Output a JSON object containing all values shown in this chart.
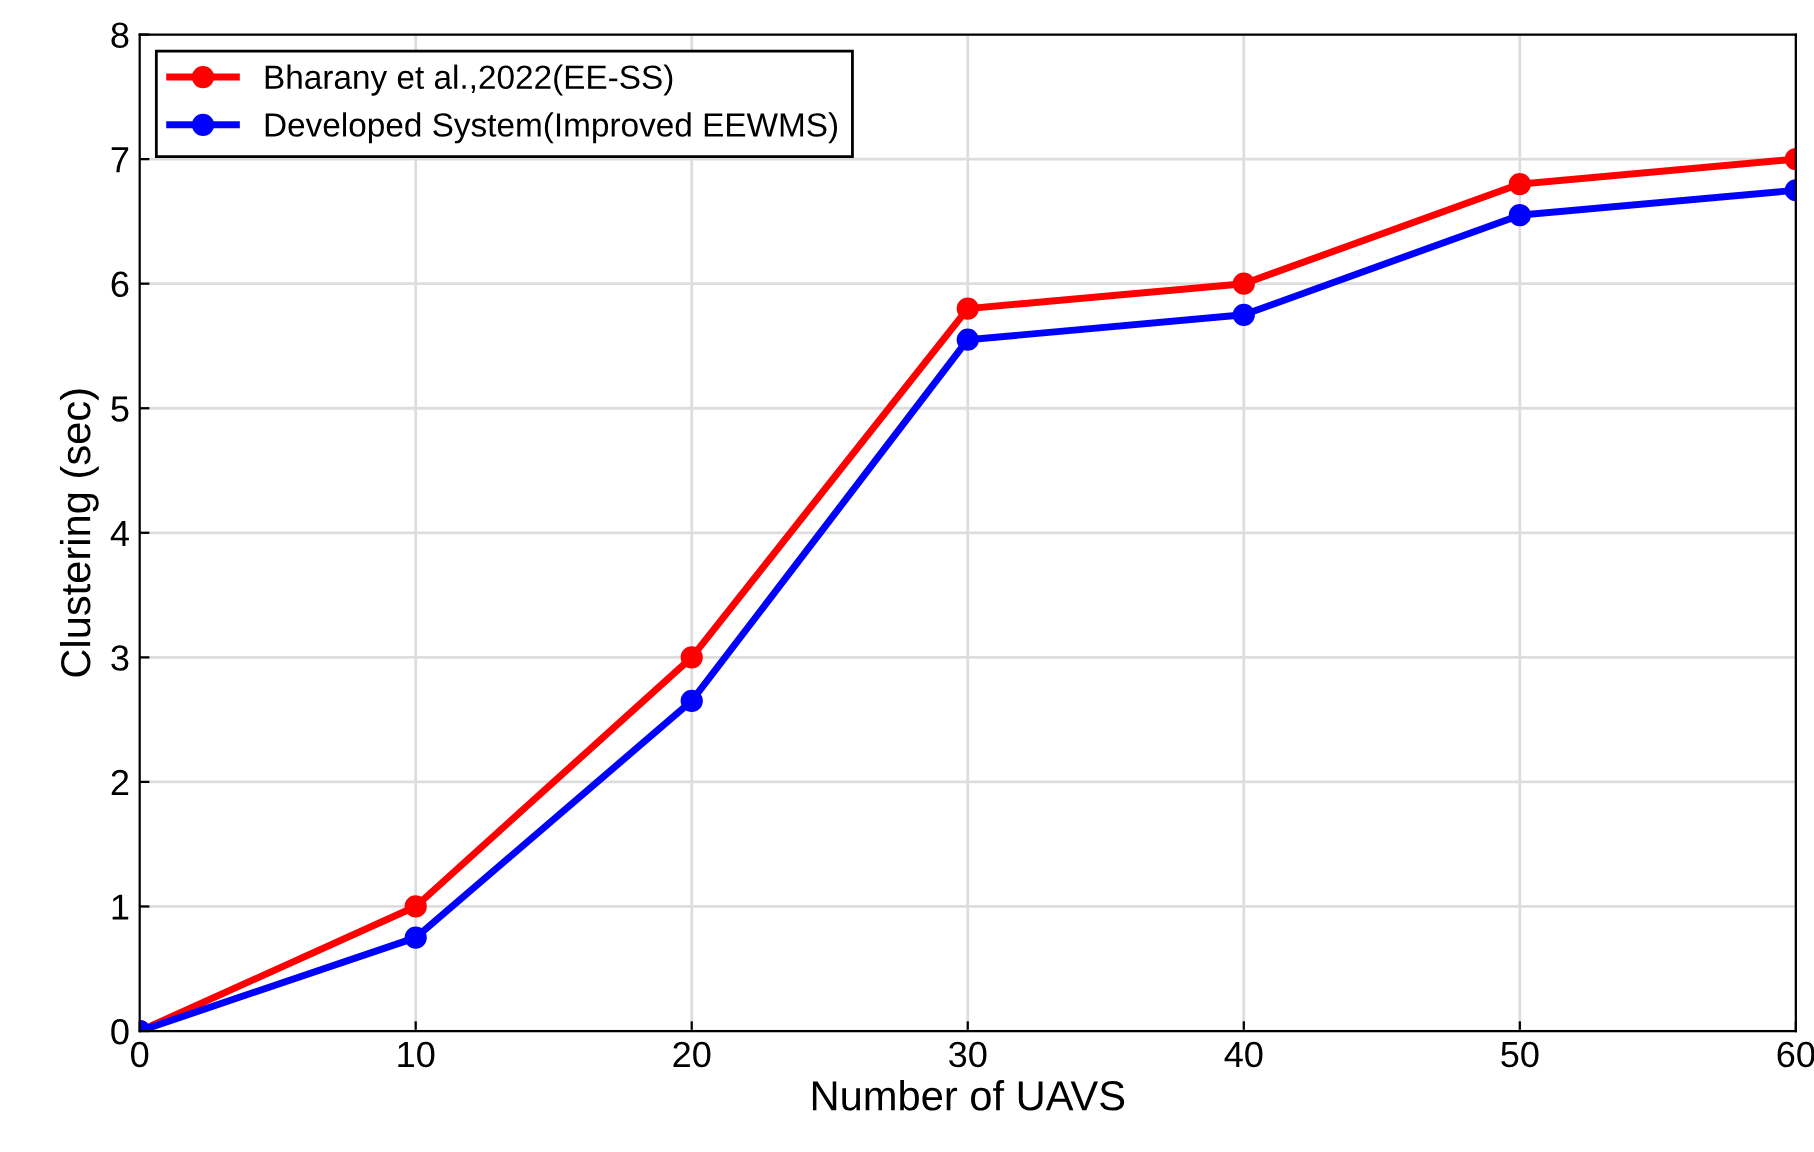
{
  "chart_data": {
    "type": "line",
    "xlabel": "Number of UAVS",
    "ylabel": "Clustering (sec)",
    "x": [
      0,
      10,
      20,
      30,
      40,
      50,
      60
    ],
    "series": [
      {
        "name": "Bharany et al.,2022(EE-SS)",
        "color": "#ff0000",
        "values": [
          0,
          1,
          3,
          5.8,
          6,
          6.8,
          7
        ]
      },
      {
        "name": "Developed System(Improved EEWMS)",
        "color": "#0000ff",
        "values": [
          0,
          0.75,
          2.65,
          5.55,
          5.75,
          6.55,
          6.75
        ]
      }
    ],
    "xlim": [
      0,
      60
    ],
    "xticks": [
      0,
      10,
      20,
      30,
      40,
      50,
      60
    ],
    "ylim": [
      0,
      8
    ],
    "yticks": [
      0,
      1,
      2,
      3,
      4,
      5,
      6,
      7,
      8
    ],
    "grid": true,
    "legend": "top left",
    "marker": "circle",
    "line_style": "solid"
  }
}
